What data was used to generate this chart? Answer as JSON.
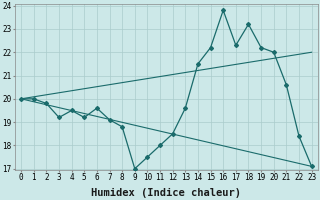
{
  "title": "",
  "xlabel": "Humidex (Indice chaleur)",
  "ylabel": "",
  "bg_color": "#cce8e8",
  "line_color": "#1a6b6b",
  "grid_color": "#aacccc",
  "x_main": [
    0,
    1,
    2,
    3,
    4,
    5,
    6,
    7,
    8,
    9,
    10,
    11,
    12,
    13,
    14,
    15,
    16,
    17,
    18,
    19,
    20,
    21,
    22,
    23
  ],
  "y_main": [
    20.0,
    20.0,
    19.8,
    19.2,
    19.5,
    19.2,
    19.6,
    19.1,
    18.8,
    17.0,
    17.5,
    18.0,
    18.5,
    19.6,
    21.5,
    22.2,
    23.8,
    22.3,
    23.2,
    22.2,
    22.0,
    20.6,
    18.4,
    17.1
  ],
  "trend1_x": [
    0,
    23
  ],
  "trend1_y": [
    20.0,
    22.0
  ],
  "trend2_x": [
    0,
    23
  ],
  "trend2_y": [
    20.0,
    17.1
  ],
  "ylim": [
    17,
    24
  ],
  "xlim": [
    -0.5,
    23.5
  ],
  "yticks": [
    17,
    18,
    19,
    20,
    21,
    22,
    23,
    24
  ],
  "xticks": [
    0,
    1,
    2,
    3,
    4,
    5,
    6,
    7,
    8,
    9,
    10,
    11,
    12,
    13,
    14,
    15,
    16,
    17,
    18,
    19,
    20,
    21,
    22,
    23
  ],
  "tick_fontsize": 5.5,
  "xlabel_fontsize": 7.5
}
